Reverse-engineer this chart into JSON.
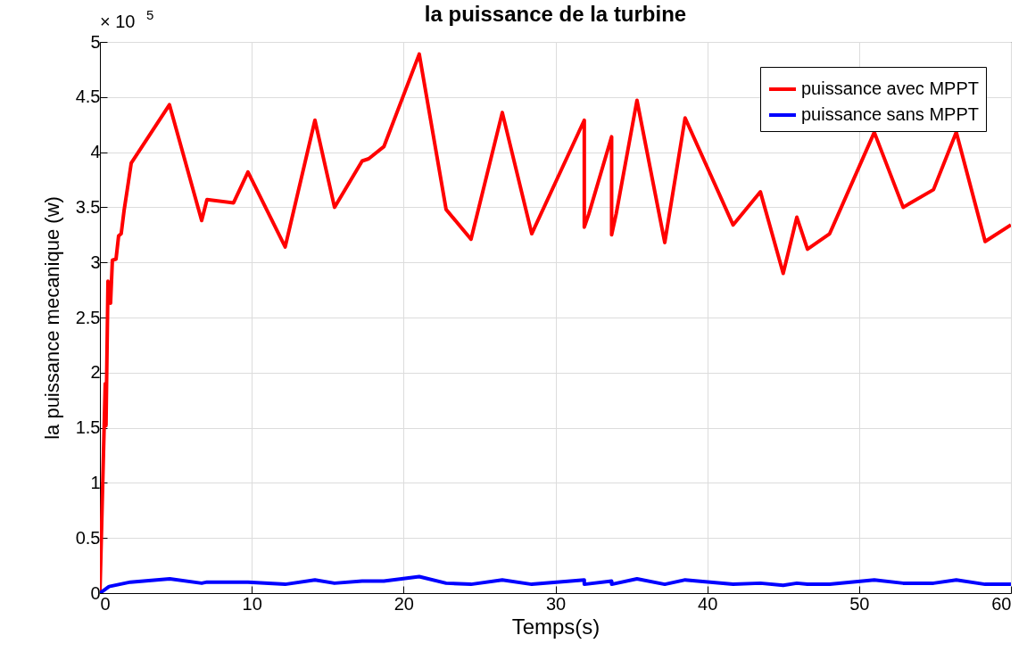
{
  "chart_data": {
    "type": "line",
    "title": "la puissance de la turbine",
    "xlabel": "Temps(s)",
    "ylabel": "la puissance mecanique (w)",
    "annotations": [
      "× 10$^{5}$"
    ],
    "xlim": [
      0,
      60
    ],
    "xticks": [
      0,
      10,
      20,
      30,
      40,
      50,
      60
    ],
    "ylim": [
      0,
      5
    ],
    "yticks": [
      0,
      0.5,
      1,
      1.5,
      2,
      2.5,
      3,
      3.5,
      4,
      4.5,
      5
    ],
    "grid": true,
    "legend": "top right",
    "series": [
      {
        "name": "puissance avec MPPT",
        "color": "#ff0000",
        "x": [
          0,
          0.35,
          0.4,
          0.53,
          0.7,
          0.82,
          1.06,
          1.23,
          1.4,
          1.6,
          1.8,
          2.06,
          4.58,
          6.7,
          7.05,
          8.8,
          9.75,
          12.2,
          14.16,
          15.45,
          17.27,
          17.7,
          18.7,
          21.03,
          22.8,
          24.44,
          26.5,
          28.44,
          31.9,
          31.9,
          32.2,
          33.7,
          33.7,
          34.0,
          35.37,
          37.2,
          38.54,
          41.7,
          43.5,
          45.0,
          45.9,
          46.6,
          48.06,
          51.0,
          52.9,
          54.9,
          56.4,
          58.3,
          60
        ],
        "values": [
          0,
          1.9,
          1.52,
          2.83,
          2.63,
          3.02,
          3.03,
          3.24,
          3.26,
          3.48,
          3.66,
          3.9,
          4.43,
          3.38,
          3.57,
          3.54,
          3.82,
          3.14,
          4.29,
          3.5,
          3.92,
          3.94,
          4.05,
          4.89,
          3.48,
          3.21,
          4.36,
          3.26,
          4.29,
          3.32,
          3.44,
          4.14,
          3.25,
          3.44,
          4.47,
          3.18,
          4.31,
          3.34,
          3.64,
          2.9,
          3.41,
          3.12,
          3.26,
          4.18,
          3.5,
          3.66,
          4.18,
          3.19,
          3.34
        ]
      },
      {
        "name": "puissance sans MPPT",
        "color": "#0000ff",
        "x": [
          0,
          0.3,
          0.6,
          2.0,
          4.6,
          6.7,
          7.05,
          8.8,
          9.75,
          12.2,
          14.16,
          15.45,
          17.27,
          18.7,
          21.03,
          22.8,
          24.44,
          26.5,
          28.44,
          31.9,
          31.9,
          33.7,
          33.7,
          35.37,
          37.2,
          38.54,
          41.7,
          43.5,
          45.0,
          45.9,
          46.6,
          48.06,
          51.0,
          52.9,
          54.9,
          56.4,
          58.3,
          60
        ],
        "values": [
          0,
          0.03,
          0.06,
          0.1,
          0.13,
          0.09,
          0.1,
          0.1,
          0.1,
          0.08,
          0.12,
          0.09,
          0.11,
          0.11,
          0.15,
          0.09,
          0.08,
          0.12,
          0.08,
          0.12,
          0.08,
          0.11,
          0.08,
          0.13,
          0.08,
          0.12,
          0.08,
          0.09,
          0.07,
          0.09,
          0.08,
          0.08,
          0.12,
          0.09,
          0.09,
          0.12,
          0.08,
          0.08
        ]
      }
    ]
  }
}
